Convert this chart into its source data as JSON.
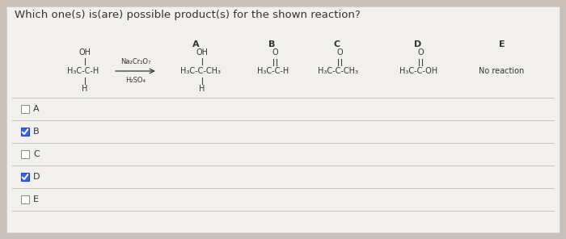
{
  "title": "Which one(s) is(are) possible product(s) for the shown reaction?",
  "bg_color": "#c8c0b8",
  "panel_color": "#f2f0ec",
  "title_fontsize": 9.5,
  "options": [
    "A",
    "B",
    "C",
    "D",
    "E"
  ],
  "checked": [
    false,
    true,
    false,
    true,
    false
  ],
  "check_color": "#2244bb",
  "check_fill": "#4466cc",
  "reagent1": "Na₂Cr₂O₇",
  "reagent2": "H₂SO₄",
  "reactant_oh": "OH",
  "reactant_main": "H₃C-C-H",
  "reactant_h": "H",
  "prod_A_oh": "OH",
  "prod_A_main": "H₃C-C-CH₃",
  "prod_A_h": "H",
  "prod_B_o": "O",
  "prod_B_main": "H₃C-C-H",
  "prod_C_o": "O",
  "prod_C_main": "H₃C-C-CH₃",
  "prod_D_o": "O",
  "prod_D_main": "H₃C-C-OH",
  "prod_E": "No reaction",
  "label_A": "A",
  "label_B": "B",
  "label_C": "C",
  "label_D": "D",
  "label_E": "E"
}
